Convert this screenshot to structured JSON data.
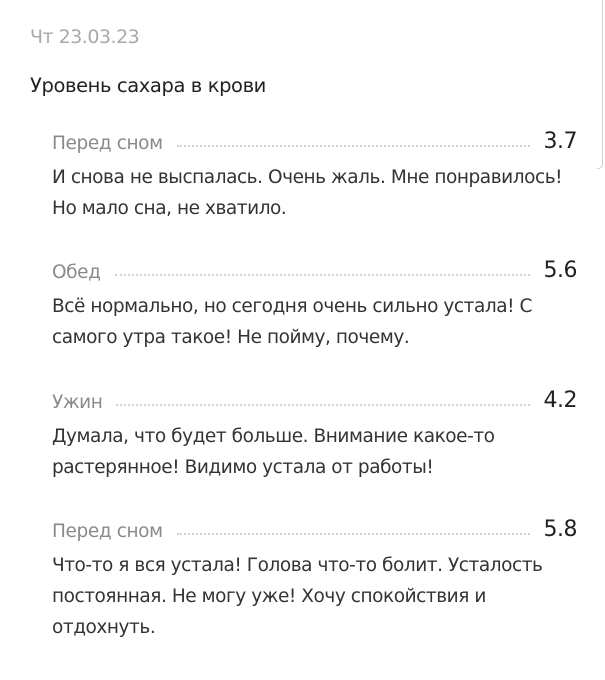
{
  "date": "Чт 23.03.23",
  "section_title": "Уровень сахара в крови",
  "entries": [
    {
      "label": "Перед сном",
      "value": "3.7",
      "note": "И снова не выспалась. Очень жаль. Мне понравилось! Но мало сна, не хватило."
    },
    {
      "label": "Обед",
      "value": "5.6",
      "note": "Всё нормально, но сегодня очень сильно устала! С самого утра такое! Не пойму, почему."
    },
    {
      "label": "Ужин",
      "value": "4.2",
      "note": "Думала, что будет больше. Внимание какое-то растерянное! Видимо устала от работы!"
    },
    {
      "label": "Перед сном",
      "value": "5.8",
      "note": "Что-то я вся устала! Голова что-то болит. Усталость постоянная. Не могу уже! Хочу спокойствия и отдохнуть."
    }
  ]
}
